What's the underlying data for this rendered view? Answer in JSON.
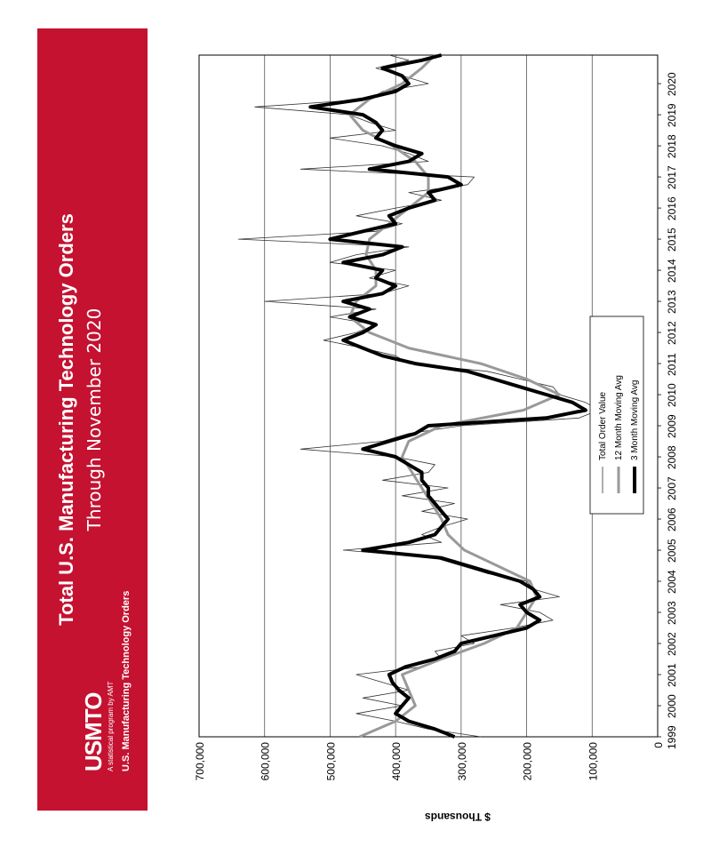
{
  "banner": {
    "title": "Total U.S. Manufacturing Technology Orders",
    "subtitle": "Through November 2020",
    "logo": "USMTO",
    "logo_tagline": "A statistical program by AMT",
    "logo_subtitle": "U.S. Manufacturing Technology Orders",
    "color": "#c41230"
  },
  "chart_data": {
    "type": "line",
    "orientation": "rotated-90-ccw",
    "title": "",
    "xlabel": "",
    "ylabel": "$ Thousands",
    "xlim": [
      1999.0,
      2020.917
    ],
    "ylim": [
      0,
      700000
    ],
    "x_ticks": [
      "1999",
      "2000",
      "2001",
      "2002",
      "2003",
      "2004",
      "2005",
      "2006",
      "2007",
      "2008",
      "2009",
      "2010",
      "2011",
      "2012",
      "2013",
      "2014",
      "2015",
      "2016",
      "2017",
      "2018",
      "2019",
      "2020"
    ],
    "y_ticks": [
      "0",
      "100,000",
      "200,000",
      "300,000",
      "400,000",
      "500,000",
      "600,000",
      "700,000"
    ],
    "grid": true,
    "legend_position": "center-right",
    "series": [
      {
        "name": "Total Order Value",
        "color": "#333333",
        "width": 0.8,
        "x": [
          1999.0,
          1999.25,
          1999.5,
          1999.75,
          2000.0,
          2000.25,
          2000.5,
          2000.75,
          2001.0,
          2001.25,
          2001.5,
          2001.75,
          2002.0,
          2002.25,
          2002.5,
          2002.75,
          2003.0,
          2003.25,
          2003.5,
          2003.75,
          2004.0,
          2004.25,
          2004.5,
          2004.75,
          2005.0,
          2005.25,
          2005.5,
          2005.75,
          2006.0,
          2006.25,
          2006.5,
          2006.75,
          2007.0,
          2007.25,
          2007.5,
          2007.75,
          2008.0,
          2008.25,
          2008.5,
          2008.75,
          2009.0,
          2009.25,
          2009.5,
          2009.75,
          2010.0,
          2010.25,
          2010.5,
          2010.75,
          2011.0,
          2011.25,
          2011.5,
          2011.75,
          2012.0,
          2012.25,
          2012.5,
          2012.75,
          2013.0,
          2013.25,
          2013.5,
          2013.75,
          2014.0,
          2014.25,
          2014.5,
          2014.75,
          2015.0,
          2015.25,
          2015.5,
          2015.75,
          2016.0,
          2016.25,
          2016.5,
          2016.75,
          2017.0,
          2017.25,
          2017.5,
          2017.75,
          2018.0,
          2018.25,
          2018.5,
          2018.75,
          2019.0,
          2019.25,
          2019.5,
          2019.75,
          2020.0,
          2020.25,
          2020.5,
          2020.75,
          2020.917
        ],
        "y": [
          270000,
          350000,
          400000,
          460000,
          390000,
          450000,
          380000,
          420000,
          460000,
          360000,
          330000,
          340000,
          280000,
          300000,
          220000,
          160000,
          180000,
          240000,
          150000,
          190000,
          200000,
          260000,
          300000,
          340000,
          480000,
          330000,
          360000,
          330000,
          290000,
          360000,
          310000,
          390000,
          320000,
          420000,
          350000,
          340000,
          400000,
          545000,
          420000,
          380000,
          300000,
          120000,
          90000,
          110000,
          150000,
          160000,
          210000,
          260000,
          380000,
          400000,
          450000,
          510000,
          460000,
          430000,
          500000,
          430000,
          600000,
          420000,
          380000,
          440000,
          400000,
          500000,
          460000,
          380000,
          640000,
          430000,
          390000,
          460000,
          400000,
          330000,
          380000,
          290000,
          280000,
          545000,
          350000,
          380000,
          420000,
          500000,
          400000,
          440000,
          470000,
          615000,
          440000,
          420000,
          350000,
          390000,
          430000,
          380000,
          410000
        ]
      },
      {
        "name": "12 Month Moving Avg",
        "color": "#999999",
        "width": 3,
        "x": [
          1999.0,
          1999.5,
          2000.0,
          2000.5,
          2001.0,
          2001.5,
          2002.0,
          2002.5,
          2003.0,
          2003.5,
          2004.0,
          2004.5,
          2005.0,
          2005.5,
          2006.0,
          2006.5,
          2007.0,
          2007.5,
          2008.0,
          2008.5,
          2009.0,
          2009.5,
          2010.0,
          2010.5,
          2011.0,
          2011.5,
          2012.0,
          2012.5,
          2013.0,
          2013.5,
          2014.0,
          2014.5,
          2015.0,
          2015.5,
          2016.0,
          2016.5,
          2017.0,
          2017.5,
          2018.0,
          2018.5,
          2019.0,
          2019.5,
          2020.0,
          2020.5,
          2020.917
        ],
        "y": [
          455000,
          400000,
          370000,
          380000,
          390000,
          330000,
          265000,
          215000,
          200000,
          185000,
          195000,
          245000,
          295000,
          320000,
          330000,
          345000,
          360000,
          375000,
          390000,
          380000,
          330000,
          205000,
          150000,
          200000,
          270000,
          380000,
          440000,
          470000,
          460000,
          430000,
          430000,
          445000,
          440000,
          410000,
          380000,
          350000,
          350000,
          370000,
          405000,
          450000,
          470000,
          440000,
          390000,
          360000,
          340000
        ]
      },
      {
        "name": "3 Month Moving Avg",
        "color": "#000000",
        "width": 4,
        "x": [
          1999.0,
          1999.25,
          1999.5,
          1999.75,
          2000.0,
          2000.25,
          2000.5,
          2000.75,
          2001.0,
          2001.25,
          2001.5,
          2001.75,
          2002.0,
          2002.25,
          2002.5,
          2002.75,
          2003.0,
          2003.25,
          2003.5,
          2003.75,
          2004.0,
          2004.25,
          2004.5,
          2004.75,
          2005.0,
          2005.25,
          2005.5,
          2005.75,
          2006.0,
          2006.25,
          2006.5,
          2006.75,
          2007.0,
          2007.25,
          2007.5,
          2007.75,
          2008.0,
          2008.25,
          2008.5,
          2008.75,
          2009.0,
          2009.25,
          2009.5,
          2009.75,
          2010.0,
          2010.25,
          2010.5,
          2010.75,
          2011.0,
          2011.25,
          2011.5,
          2011.75,
          2012.0,
          2012.25,
          2012.5,
          2012.75,
          2013.0,
          2013.25,
          2013.5,
          2013.75,
          2014.0,
          2014.25,
          2014.5,
          2014.75,
          2015.0,
          2015.25,
          2015.5,
          2015.75,
          2016.0,
          2016.25,
          2016.5,
          2016.75,
          2017.0,
          2017.25,
          2017.5,
          2017.75,
          2018.0,
          2018.25,
          2018.5,
          2018.75,
          2019.0,
          2019.25,
          2019.5,
          2019.75,
          2020.0,
          2020.25,
          2020.5,
          2020.75,
          2020.917
        ],
        "y": [
          310000,
          340000,
          380000,
          400000,
          390000,
          380000,
          395000,
          405000,
          410000,
          385000,
          340000,
          310000,
          300000,
          250000,
          200000,
          180000,
          200000,
          210000,
          180000,
          190000,
          210000,
          250000,
          290000,
          330000,
          450000,
          380000,
          340000,
          330000,
          320000,
          330000,
          340000,
          350000,
          350000,
          360000,
          360000,
          380000,
          400000,
          450000,
          410000,
          370000,
          350000,
          170000,
          110000,
          130000,
          170000,
          210000,
          250000,
          290000,
          370000,
          420000,
          450000,
          480000,
          450000,
          430000,
          470000,
          440000,
          480000,
          420000,
          400000,
          430000,
          420000,
          480000,
          420000,
          390000,
          500000,
          450000,
          400000,
          410000,
          380000,
          340000,
          350000,
          300000,
          320000,
          440000,
          380000,
          360000,
          400000,
          430000,
          420000,
          430000,
          450000,
          530000,
          450000,
          400000,
          380000,
          390000,
          420000,
          360000,
          330000
        ]
      }
    ]
  }
}
